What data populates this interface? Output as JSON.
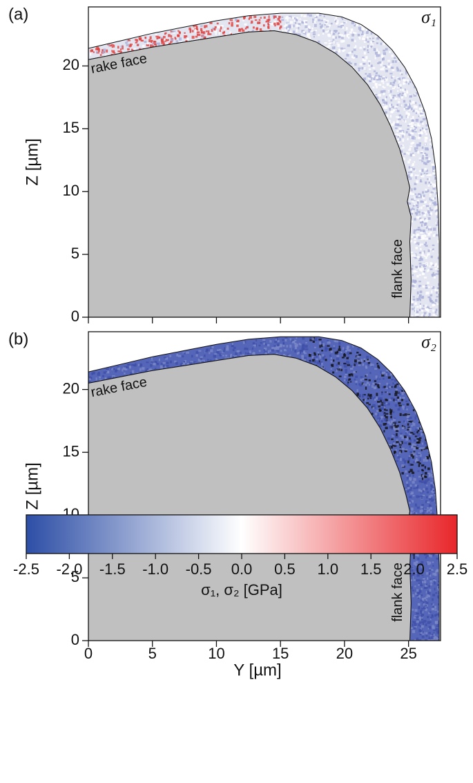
{
  "chart_data": [
    {
      "type": "stress-map",
      "panel_label": "(a)",
      "field_label": "σ₁",
      "ylabel": "Z [µm]",
      "xlim": [
        0,
        27.5
      ],
      "ylim": [
        0,
        24.7
      ],
      "yticks": [
        0,
        5,
        10,
        15,
        20
      ],
      "annotations": [
        "rake face",
        "flank face"
      ],
      "coating_color": "#e3e5f1",
      "accent_color": "#e0403c"
    },
    {
      "type": "stress-map",
      "panel_label": "(b)",
      "field_label": "σ₂",
      "ylabel": "Z [µm]",
      "xlabel": "Y [µm]",
      "xlim": [
        0,
        27.5
      ],
      "ylim": [
        0,
        24.6
      ],
      "xticks": [
        0,
        5,
        10,
        15,
        20,
        25
      ],
      "yticks": [
        0,
        5,
        10,
        15,
        20
      ],
      "annotations": [
        "rake face",
        "flank face"
      ],
      "coating_color": "#5565b7",
      "accent_color": "#111111"
    },
    {
      "type": "colorbar",
      "label": "σ₁, σ₂ [GPa]",
      "xlim": [
        -2.5,
        2.5
      ],
      "xticks": [
        -2.5,
        {
          "value": -2,
          "label": "-2.0"
        },
        -1.5,
        {
          "value": -1,
          "label": "-1.0"
        },
        -0.5,
        {
          "value": 0,
          "label": "0.0"
        },
        0.5,
        {
          "value": 1,
          "label": "1.0"
        },
        1.5,
        {
          "value": 2,
          "label": "2.0"
        },
        2.5
      ],
      "colors": [
        "#2d4ea6",
        "#ffffff",
        "#e8262a"
      ]
    }
  ]
}
